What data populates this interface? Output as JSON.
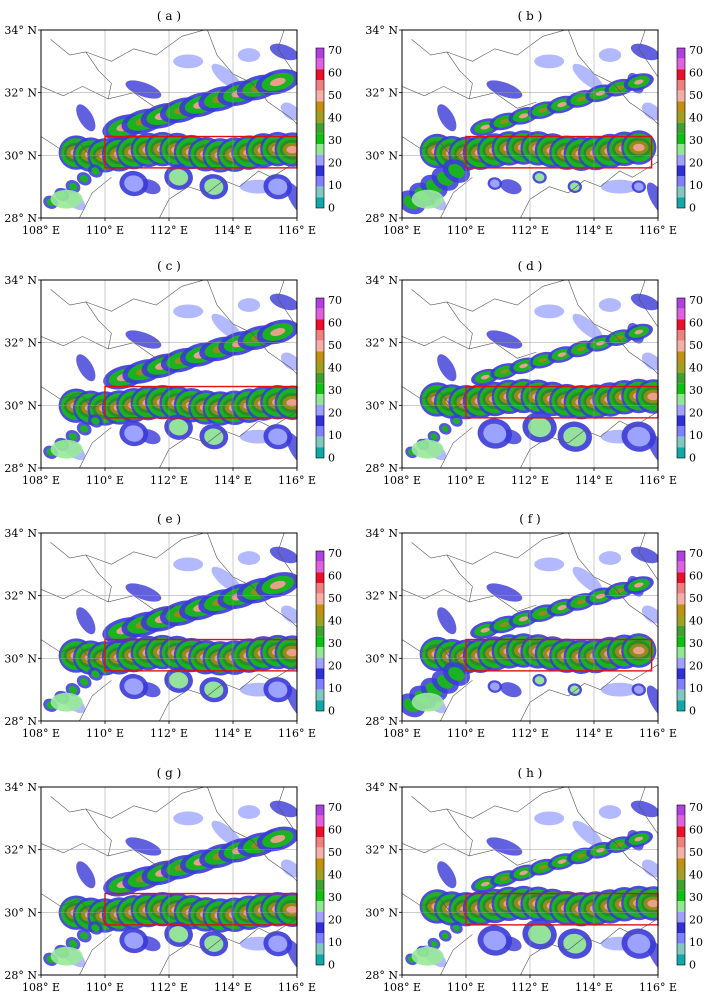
{
  "panels": [
    {
      "label": "( a )",
      "variant": "A"
    },
    {
      "label": "( b )",
      "variant": "B"
    },
    {
      "label": "( c )",
      "variant": "C"
    },
    {
      "label": "( d )",
      "variant": "D"
    },
    {
      "label": "( e )",
      "variant": "A"
    },
    {
      "label": "( f )",
      "variant": "B"
    },
    {
      "label": "( g )",
      "variant": "C"
    },
    {
      "label": "( h )",
      "variant": "D"
    }
  ],
  "map": {
    "lon_range": [
      108,
      116
    ],
    "lat_range": [
      28,
      34
    ],
    "lon_ticks": [
      "108° E",
      "110° E",
      "112° E",
      "114° E",
      "116° E"
    ],
    "lat_ticks": [
      "28° N",
      "30° N",
      "32° N",
      "34° N"
    ],
    "gridlines": true,
    "box_color": "#e01010"
  },
  "colorbar": {
    "labels": [
      "70",
      "60",
      "50",
      "40",
      "30",
      "20",
      "10",
      "0"
    ],
    "colors": [
      "#b040e0",
      "#e060e0",
      "#e8102a",
      "#f08080",
      "#f4b0a8",
      "#c09010",
      "#a0a020",
      "#40a030",
      "#10c010",
      "#90e890",
      "#a0a0ff",
      "#3030d8",
      "#8080ff",
      "#80c8c0",
      "#10a8a8"
    ]
  },
  "colors": {
    "cyan": "#10b0b0",
    "lightblue": "#a0a8ff",
    "blue": "#3a3ad8",
    "lightgreen": "#98ea98",
    "green": "#18b818",
    "darkgreen": "#2a8a2a",
    "olive": "#9a8a18",
    "salmon": "#f0a090",
    "red": "#e03030"
  }
}
